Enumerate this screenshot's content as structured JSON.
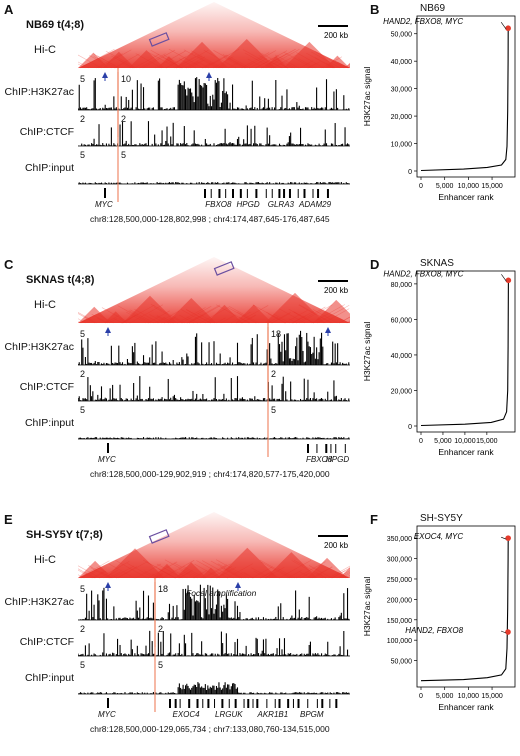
{
  "hic_label": "Hi-C",
  "track_labels": [
    "ChIP:H3K27ac",
    "ChIP:CTCF",
    "ChIP:input"
  ],
  "scalebar_label": "200 kb",
  "rank_panel": {
    "xlabel": "Enhancer rank",
    "ylabel": "H3K27ac signal"
  },
  "colors": {
    "hic": "#e8352b",
    "breakpoint": "#f08a6a",
    "marker": "#e53b2c",
    "box": "#6a4fa0",
    "arrow": "#2a3fa8",
    "signal": "#000000"
  },
  "panels": [
    {
      "left_letter": "A",
      "right_letter": "B",
      "sample": "NB69 t(4;8)",
      "rank_title": "NB69",
      "scales": [
        "5",
        "2",
        "5"
      ],
      "scales_right": [
        "10",
        "2",
        "5"
      ],
      "genes_left": [
        "MYC"
      ],
      "genes_right": [
        "FBXO8",
        "HPGD",
        "GLRA3",
        "ADAM29"
      ],
      "focal_label": "",
      "coords": "chr8:128,500,000-128,802,998 ; chr4:174,487,645-176,487,645",
      "chart_data": {
        "type": "line",
        "title": "NB69",
        "xlabel": "Enhancer rank",
        "ylabel": "H3K27ac signal",
        "xlim": [
          0,
          19000
        ],
        "ylim": [
          0,
          55000
        ],
        "xticks": [
          0,
          5000,
          10000,
          15000
        ],
        "xtick_labels": [
          "0",
          "5,000",
          "10,000",
          "15,000"
        ],
        "yticks": [
          0,
          10000,
          20000,
          30000,
          40000,
          50000
        ],
        "ytick_labels": [
          "0",
          "10,000",
          "20,000",
          "30,000",
          "40,000",
          "50,000"
        ],
        "n": 18400,
        "curve": [
          [
            0,
            200
          ],
          [
            9000,
            700
          ],
          [
            14000,
            1300
          ],
          [
            17000,
            2200
          ],
          [
            17900,
            4200
          ],
          [
            18150,
            9000
          ],
          [
            18300,
            22000
          ],
          [
            18380,
            40000
          ],
          [
            18400,
            52000
          ]
        ],
        "highlights": [
          {
            "label": "HAND2, FBXO8, MYC",
            "x": 18400,
            "y": 52000
          }
        ]
      }
    },
    {
      "left_letter": "C",
      "right_letter": "D",
      "sample": "SKNAS t(4;8)",
      "rank_title": "SKNAS",
      "scales": [
        "5",
        "2",
        "5"
      ],
      "scales_right": [
        "18",
        "2",
        "5"
      ],
      "genes_left": [
        "MYC"
      ],
      "genes_right": [
        "FBXO8",
        "HPGD"
      ],
      "focal_label": "",
      "coords": "chr8:128,500,000-129,902,919 ; chr4:174,820,577-175,420,000",
      "chart_data": {
        "type": "line",
        "title": "SKNAS",
        "xlabel": "Enhancer rank",
        "ylabel": "H3K27ac signal",
        "xlim": [
          0,
          20500
        ],
        "ylim": [
          0,
          85000
        ],
        "xticks": [
          0,
          5000,
          10000,
          15000
        ],
        "xtick_labels": [
          "0",
          "5,000",
          "10,000",
          "15,000"
        ],
        "yticks": [
          0,
          20000,
          40000,
          60000,
          80000
        ],
        "ytick_labels": [
          "0",
          "20,000",
          "40,000",
          "60,000",
          "80,000"
        ],
        "n": 19900,
        "curve": [
          [
            0,
            300
          ],
          [
            10000,
            1000
          ],
          [
            16000,
            2000
          ],
          [
            18800,
            3800
          ],
          [
            19500,
            8000
          ],
          [
            19750,
            20000
          ],
          [
            19850,
            45000
          ],
          [
            19900,
            82000
          ]
        ],
        "highlights": [
          {
            "label": "HAND2, FBXO8, MYC",
            "x": 19900,
            "y": 82000
          }
        ]
      }
    },
    {
      "left_letter": "E",
      "right_letter": "F",
      "sample": "SH-SY5Y t(7;8)",
      "rank_title": "SH-SY5Y",
      "scales": [
        "5",
        "2",
        "5"
      ],
      "scales_right": [
        "18",
        "2",
        "5"
      ],
      "genes_left": [
        "MYC"
      ],
      "genes_right": [
        "EXOC4",
        "LRGUK",
        "AKR1B1",
        "BPGM"
      ],
      "focal_label": "Focal amplification",
      "coords": "chr8:128,500,000-129,065,734 ; chr7:133,080,760-134,515,000",
      "chart_data": {
        "type": "line",
        "title": "SH-SY5Y",
        "xlabel": "Enhancer rank",
        "ylabel": "H3K27ac signal",
        "xlim": [
          0,
          19000
        ],
        "ylim": [
          0,
          370000
        ],
        "xticks": [
          0,
          5000,
          10000,
          15000
        ],
        "xtick_labels": [
          "0",
          "5,000",
          "10,000",
          "15,000"
        ],
        "yticks": [
          50000,
          100000,
          150000,
          200000,
          250000,
          300000,
          350000
        ],
        "ytick_labels": [
          "50,000",
          "100,000",
          "150,000",
          "200,000",
          "250,000",
          "300,000",
          "350,000"
        ],
        "n": 18400,
        "curve": [
          [
            0,
            800
          ],
          [
            9000,
            3500
          ],
          [
            14000,
            8000
          ],
          [
            17000,
            15000
          ],
          [
            17900,
            30000
          ],
          [
            18150,
            80000
          ],
          [
            18300,
            180000
          ],
          [
            18380,
            300000
          ],
          [
            18400,
            350000
          ]
        ],
        "highlights": [
          {
            "label": "EXOC4, MYC",
            "x": 18400,
            "y": 350000
          },
          {
            "label": "HAND2, FBXO8",
            "x": 18370,
            "y": 120000
          }
        ]
      }
    }
  ]
}
